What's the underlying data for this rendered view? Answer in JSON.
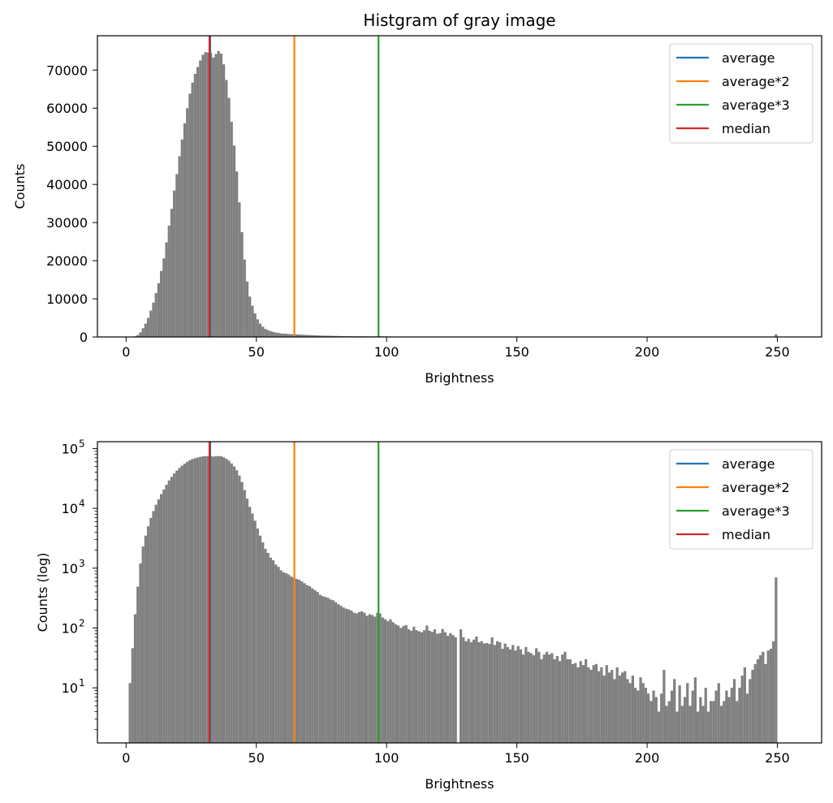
{
  "figure": {
    "title": "Histgram of gray image"
  },
  "chart_data": [
    {
      "type": "histogram",
      "title": "Histgram of gray image",
      "xlabel": "Brightness",
      "ylabel": "Counts",
      "xlim": [
        -11,
        267
      ],
      "ylim": [
        0,
        79000
      ],
      "yscale": "linear",
      "x_ticks": [
        0,
        50,
        100,
        150,
        200,
        250
      ],
      "y_ticks": [
        0,
        10000,
        20000,
        30000,
        40000,
        50000,
        60000,
        70000
      ],
      "legend": {
        "placement": "top-right",
        "entries": [
          {
            "name": "average",
            "color": "#1f77b4"
          },
          {
            "name": "average*2",
            "color": "#ff7f0e"
          },
          {
            "name": "average*3",
            "color": "#2ca02c"
          },
          {
            "name": "median",
            "color": "#d62728"
          }
        ]
      },
      "vlines": [
        {
          "name": "average",
          "x": 32.3,
          "color": "#1f77b4"
        },
        {
          "name": "average*2",
          "x": 64.6,
          "color": "#ff7f0e"
        },
        {
          "name": "average*3",
          "x": 96.9,
          "color": "#2ca02c"
        },
        {
          "name": "median",
          "x": 32,
          "color": "#d62728"
        }
      ],
      "bar_color": "#808080"
    },
    {
      "type": "histogram",
      "title": "",
      "xlabel": "Brightness",
      "ylabel": "Counts (log)",
      "xlim": [
        -11,
        267
      ],
      "ylim": [
        1.2,
        130000
      ],
      "yscale": "log",
      "x_ticks": [
        0,
        50,
        100,
        150,
        200,
        250
      ],
      "y_ticks": [
        {
          "value": 10,
          "base": "10",
          "exp": "1"
        },
        {
          "value": 100,
          "base": "10",
          "exp": "2"
        },
        {
          "value": 1000,
          "base": "10",
          "exp": "3"
        },
        {
          "value": 10000,
          "base": "10",
          "exp": "4"
        },
        {
          "value": 100000,
          "base": "10",
          "exp": "5"
        }
      ],
      "legend": {
        "placement": "top-right",
        "entries": [
          {
            "name": "average",
            "color": "#1f77b4"
          },
          {
            "name": "average*2",
            "color": "#ff7f0e"
          },
          {
            "name": "average*3",
            "color": "#2ca02c"
          },
          {
            "name": "median",
            "color": "#d62728"
          }
        ]
      },
      "vlines": [
        {
          "name": "average",
          "x": 32.3,
          "color": "#1f77b4"
        },
        {
          "name": "average*2",
          "x": 64.6,
          "color": "#ff7f0e"
        },
        {
          "name": "average*3",
          "x": 96.9,
          "color": "#2ca02c"
        },
        {
          "name": "median",
          "x": 32,
          "color": "#d62728"
        }
      ],
      "bar_color": "#808080"
    }
  ],
  "histogram": {
    "bin_width": 1,
    "x": [
      0,
      1,
      2,
      3,
      4,
      5,
      6,
      7,
      8,
      9,
      10,
      11,
      12,
      13,
      14,
      15,
      16,
      17,
      18,
      19,
      20,
      21,
      22,
      23,
      24,
      25,
      26,
      27,
      28,
      29,
      30,
      31,
      32,
      33,
      34,
      35,
      36,
      37,
      38,
      39,
      40,
      41,
      42,
      43,
      44,
      45,
      46,
      47,
      48,
      49,
      50,
      51,
      52,
      53,
      54,
      55,
      56,
      57,
      58,
      59,
      60,
      61,
      62,
      63,
      64,
      65,
      66,
      67,
      68,
      69,
      70,
      71,
      72,
      73,
      74,
      75,
      76,
      77,
      78,
      79,
      80,
      81,
      82,
      83,
      84,
      85,
      86,
      87,
      88,
      89,
      90,
      91,
      92,
      93,
      94,
      95,
      96,
      97,
      98,
      99,
      100,
      101,
      102,
      103,
      104,
      105,
      106,
      107,
      108,
      109,
      110,
      111,
      112,
      113,
      114,
      115,
      116,
      117,
      118,
      119,
      120,
      121,
      122,
      123,
      124,
      125,
      126,
      127,
      128,
      129,
      130,
      131,
      132,
      133,
      134,
      135,
      136,
      137,
      138,
      139,
      140,
      141,
      142,
      143,
      144,
      145,
      146,
      147,
      148,
      149,
      150,
      151,
      152,
      153,
      154,
      155,
      156,
      157,
      158,
      159,
      160,
      161,
      162,
      163,
      164,
      165,
      166,
      167,
      168,
      169,
      170,
      171,
      172,
      173,
      174,
      175,
      176,
      177,
      178,
      179,
      180,
      181,
      182,
      183,
      184,
      185,
      186,
      187,
      188,
      189,
      190,
      191,
      192,
      193,
      194,
      195,
      196,
      197,
      198,
      199,
      200,
      201,
      202,
      203,
      204,
      205,
      206,
      207,
      208,
      209,
      210,
      211,
      212,
      213,
      214,
      215,
      216,
      217,
      218,
      219,
      220,
      221,
      222,
      223,
      224,
      225,
      226,
      227,
      228,
      229,
      230,
      231,
      232,
      233,
      234,
      235,
      236,
      237,
      238,
      239,
      240,
      241,
      242,
      243,
      244,
      245,
      246,
      247,
      248,
      249,
      250,
      251,
      252,
      253,
      254
    ],
    "counts": [
      0,
      12,
      46,
      170,
      490,
      1200,
      2300,
      3500,
      5000,
      6900,
      9000,
      11500,
      14100,
      17300,
      20600,
      24800,
      29200,
      33600,
      38400,
      42700,
      47400,
      51800,
      56000,
      60000,
      63800,
      66700,
      69000,
      70800,
      72500,
      74000,
      74700,
      74600,
      74500,
      73300,
      74200,
      75000,
      74300,
      71500,
      67400,
      62700,
      56400,
      50200,
      43400,
      35300,
      27500,
      20300,
      14500,
      10600,
      8200,
      6200,
      4600,
      3500,
      2700,
      2100,
      1800,
      1500,
      1350,
      1150,
      1050,
      920,
      850,
      820,
      780,
      720,
      690,
      660,
      640,
      600,
      560,
      520,
      500,
      460,
      430,
      400,
      360,
      340,
      330,
      320,
      300,
      290,
      270,
      250,
      235,
      220,
      210,
      205,
      195,
      180,
      175,
      185,
      190,
      180,
      160,
      170,
      165,
      155,
      180,
      175,
      150,
      140,
      130,
      140,
      125,
      115,
      110,
      100,
      108,
      112,
      95,
      90,
      105,
      92,
      88,
      85,
      92,
      110,
      90,
      86,
      95,
      80,
      82,
      96,
      85,
      74,
      82,
      76,
      70,
      0,
      95,
      70,
      60,
      66,
      58,
      64,
      72,
      58,
      60,
      55,
      56,
      54,
      70,
      52,
      60,
      58,
      45,
      55,
      48,
      44,
      52,
      42,
      50,
      44,
      36,
      48,
      40,
      38,
      35,
      46,
      40,
      30,
      36,
      40,
      36,
      38,
      30,
      34,
      28,
      36,
      40,
      30,
      30,
      25,
      26,
      22,
      28,
      24,
      30,
      22,
      20,
      24,
      25,
      19,
      22,
      16,
      24,
      18,
      20,
      14,
      22,
      16,
      18,
      19,
      14,
      12,
      16,
      10,
      9,
      15,
      12,
      10,
      8,
      6,
      9,
      7,
      4,
      8,
      20,
      5,
      6,
      9,
      14,
      4,
      11,
      5,
      7,
      12,
      5,
      9,
      15,
      4,
      7,
      5,
      10,
      4,
      6,
      6,
      9,
      12,
      5,
      6,
      9,
      7,
      10,
      14,
      6,
      10,
      16,
      22,
      8,
      14,
      20,
      25,
      30,
      35,
      40,
      25,
      42,
      45,
      60,
      700,
      0,
      0,
      0,
      0,
      0
    ]
  }
}
